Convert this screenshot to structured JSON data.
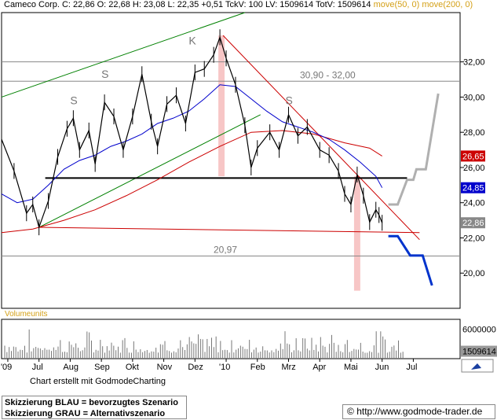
{
  "header": {
    "name": "Cameco Corp.",
    "quote": "C: 22,86 O: 22,68 H: 23,08 L: 22,35 +0,51 TckV: 100 LV: 1509614 TotV: 1509614",
    "ma_label": "move(50, 0) move(200, 0)"
  },
  "colors": {
    "price": "#000000",
    "ma50": "#0000cc",
    "ma200": "#cc0000",
    "trendline": "#cc0000",
    "channel": "#008000",
    "support": "#000000",
    "scenario_blue": "#0033cc",
    "scenario_grey": "#b0b0b0",
    "highlight": "#f7c6c6"
  },
  "chart_data": {
    "type": "line",
    "title": "Cameco Corp.",
    "x_tick_labels": [
      "'09",
      "Jul",
      "Aug",
      "Sep",
      "Okt",
      "Nov",
      "Dez",
      "'10",
      "Feb",
      "Mrz",
      "Apr",
      "Mai",
      "Jun",
      "Jul"
    ],
    "y_ticks": [
      20,
      22,
      24,
      26,
      28,
      30,
      32
    ],
    "y_tick_labels": [
      "20,00",
      "22,00",
      "24,00",
      "26,00",
      "28,00",
      "30,00",
      "32,00"
    ],
    "ylim": [
      18.0,
      34.8
    ],
    "price_series": [
      {
        "x": 0,
        "y": 27.6
      },
      {
        "x": 0.4,
        "y": 25.8
      },
      {
        "x": 0.8,
        "y": 23.4
      },
      {
        "x": 1.0,
        "y": 23.9
      },
      {
        "x": 1.2,
        "y": 22.6
      },
      {
        "x": 1.5,
        "y": 24.1
      },
      {
        "x": 1.8,
        "y": 26.6
      },
      {
        "x": 2.1,
        "y": 28.2
      },
      {
        "x": 2.3,
        "y": 28.8
      },
      {
        "x": 2.5,
        "y": 27.0
      },
      {
        "x": 2.8,
        "y": 28.1
      },
      {
        "x": 3.0,
        "y": 26.2
      },
      {
        "x": 3.3,
        "y": 29.7
      },
      {
        "x": 3.6,
        "y": 28.9
      },
      {
        "x": 3.9,
        "y": 27.0
      },
      {
        "x": 4.2,
        "y": 28.9
      },
      {
        "x": 4.5,
        "y": 31.3
      },
      {
        "x": 4.8,
        "y": 28.6
      },
      {
        "x": 5.0,
        "y": 27.2
      },
      {
        "x": 5.3,
        "y": 29.6
      },
      {
        "x": 5.6,
        "y": 30.1
      },
      {
        "x": 5.9,
        "y": 28.5
      },
      {
        "x": 6.2,
        "y": 31.4
      },
      {
        "x": 6.5,
        "y": 31.6
      },
      {
        "x": 6.8,
        "y": 32.4
      },
      {
        "x": 7.0,
        "y": 33.4
      },
      {
        "x": 7.2,
        "y": 32.2
      },
      {
        "x": 7.5,
        "y": 30.7
      },
      {
        "x": 7.8,
        "y": 28.4
      },
      {
        "x": 8.0,
        "y": 26.0
      },
      {
        "x": 8.2,
        "y": 27.1
      },
      {
        "x": 8.6,
        "y": 28.0
      },
      {
        "x": 8.9,
        "y": 27.0
      },
      {
        "x": 9.2,
        "y": 29.0
      },
      {
        "x": 9.5,
        "y": 27.8
      },
      {
        "x": 9.8,
        "y": 28.3
      },
      {
        "x": 10.2,
        "y": 27.0
      },
      {
        "x": 10.5,
        "y": 26.7
      },
      {
        "x": 10.8,
        "y": 25.8
      },
      {
        "x": 11.0,
        "y": 24.5
      },
      {
        "x": 11.2,
        "y": 23.9
      },
      {
        "x": 11.4,
        "y": 25.6
      },
      {
        "x": 11.6,
        "y": 24.4
      },
      {
        "x": 11.8,
        "y": 22.9
      },
      {
        "x": 12.0,
        "y": 23.6
      },
      {
        "x": 12.1,
        "y": 23.3
      },
      {
        "x": 12.2,
        "y": 22.86
      }
    ],
    "ma50_series": [
      {
        "x": 0,
        "y": 24.5
      },
      {
        "x": 0.5,
        "y": 24.0
      },
      {
        "x": 1.0,
        "y": 24.2
      },
      {
        "x": 1.5,
        "y": 25.0
      },
      {
        "x": 2.0,
        "y": 25.9
      },
      {
        "x": 2.5,
        "y": 26.4
      },
      {
        "x": 3.0,
        "y": 26.7
      },
      {
        "x": 3.5,
        "y": 27.2
      },
      {
        "x": 4.0,
        "y": 27.5
      },
      {
        "x": 4.5,
        "y": 27.9
      },
      {
        "x": 5.0,
        "y": 28.5
      },
      {
        "x": 5.5,
        "y": 28.8
      },
      {
        "x": 6.0,
        "y": 29.2
      },
      {
        "x": 6.5,
        "y": 29.9
      },
      {
        "x": 7.0,
        "y": 30.7
      },
      {
        "x": 7.5,
        "y": 30.6
      },
      {
        "x": 8.0,
        "y": 29.9
      },
      {
        "x": 8.5,
        "y": 29.2
      },
      {
        "x": 9.0,
        "y": 28.6
      },
      {
        "x": 9.5,
        "y": 28.3
      },
      {
        "x": 10.0,
        "y": 28.0
      },
      {
        "x": 10.5,
        "y": 27.6
      },
      {
        "x": 11.0,
        "y": 27.0
      },
      {
        "x": 11.5,
        "y": 26.3
      },
      {
        "x": 12.0,
        "y": 25.5
      },
      {
        "x": 12.2,
        "y": 24.85
      }
    ],
    "ma200_series": [
      {
        "x": 0,
        "y": 22.3
      },
      {
        "x": 1.0,
        "y": 22.5
      },
      {
        "x": 2.0,
        "y": 23.0
      },
      {
        "x": 3.0,
        "y": 23.6
      },
      {
        "x": 4.0,
        "y": 24.4
      },
      {
        "x": 5.0,
        "y": 25.3
      },
      {
        "x": 6.0,
        "y": 26.3
      },
      {
        "x": 7.0,
        "y": 27.2
      },
      {
        "x": 8.0,
        "y": 28.0
      },
      {
        "x": 9.0,
        "y": 28.1
      },
      {
        "x": 10.0,
        "y": 27.9
      },
      {
        "x": 11.0,
        "y": 27.4
      },
      {
        "x": 11.8,
        "y": 27.1
      },
      {
        "x": 12.2,
        "y": 26.65
      }
    ],
    "trend_lines": [
      {
        "kind": "channel-upper",
        "from": [
          0.0,
          30.0
        ],
        "to": [
          7.8,
          34.8
        ]
      },
      {
        "kind": "channel-lower",
        "from": [
          1.2,
          22.6
        ],
        "to": [
          8.3,
          29.0
        ]
      },
      {
        "kind": "downtrend",
        "from": [
          7.1,
          33.5
        ],
        "to": [
          13.4,
          21.9
        ]
      },
      {
        "kind": "neckline",
        "from": [
          1.2,
          22.6
        ],
        "to": [
          13.4,
          22.3
        ]
      },
      {
        "kind": "support",
        "from": [
          1.4,
          25.4
        ],
        "to": [
          13.0,
          25.4
        ]
      }
    ],
    "horizontal_levels": [
      {
        "y": 32.0,
        "label": ""
      },
      {
        "y": 30.9,
        "label": "30,90 - 32,00"
      },
      {
        "y": 20.97,
        "label": "20,97"
      }
    ],
    "highlight_bands": [
      {
        "x_start": 6.95,
        "x_end": 7.15,
        "y_top": 33.5,
        "y_bottom": 25.5
      },
      {
        "x_start": 11.3,
        "x_end": 11.5,
        "y_top": 25.5,
        "y_bottom": 19.0
      }
    ],
    "pattern_labels": [
      {
        "text": "S",
        "x": 2.2,
        "y": 29.6
      },
      {
        "text": "S",
        "x": 3.2,
        "y": 31.1
      },
      {
        "text": "K",
        "x": 6.0,
        "y": 33.0
      },
      {
        "text": "S",
        "x": 9.1,
        "y": 29.6
      }
    ],
    "scenario_blue": [
      [
        12.4,
        22.1
      ],
      [
        12.7,
        22.1
      ],
      [
        13.1,
        21.0
      ],
      [
        13.5,
        21.0
      ],
      [
        13.8,
        19.3
      ]
    ],
    "scenario_grey": [
      [
        12.4,
        23.9
      ],
      [
        12.7,
        23.9
      ],
      [
        13.0,
        25.3
      ],
      [
        13.2,
        25.3
      ],
      [
        13.3,
        25.9
      ],
      [
        13.6,
        25.9
      ],
      [
        14.0,
        30.2
      ]
    ],
    "current_price_labels": [
      {
        "value": 26.65,
        "text": "26,65",
        "color": "#cc0000"
      },
      {
        "value": 24.85,
        "text": "24,85",
        "color": "#0000cc"
      },
      {
        "value": 22.86,
        "text": "22,86",
        "color": "#888888"
      }
    ],
    "volume": {
      "label": "Volumeunits",
      "tick_labels": [
        "6000000",
        "1509614"
      ],
      "ylim": [
        0,
        8000000
      ]
    }
  },
  "footer": {
    "credit": "Chart erstellt mit GodmodeCharting",
    "legend_blue": "Skizzierung BLAU = bevorzugtes Szenario",
    "legend_grey": "Skizzierung GRAU = Alternativszenario",
    "copyright": "©",
    "url": "http://www.godmode-trader.de"
  }
}
